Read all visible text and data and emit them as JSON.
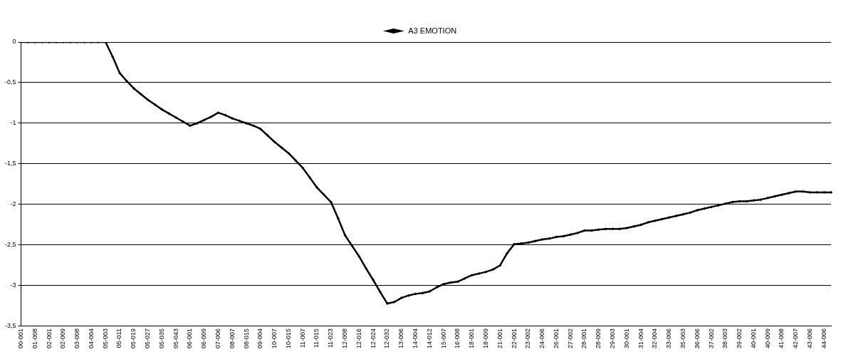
{
  "chart_data": {
    "type": "line",
    "categories": [
      "00-001",
      null,
      "01-008",
      null,
      "02-001",
      null,
      "02-009",
      null,
      "03-008",
      null,
      "04-004",
      null,
      "05-003",
      null,
      "05-011",
      null,
      "05-019",
      null,
      "05-027",
      null,
      "05-035",
      null,
      "05-043",
      null,
      "06-001",
      null,
      "06-009",
      null,
      "07-006",
      null,
      "08-007",
      null,
      "08-015",
      null,
      "09-004",
      null,
      "10-007",
      null,
      "10-015",
      null,
      "11-007",
      null,
      "11-015",
      null,
      "11-023",
      null,
      "12-008",
      null,
      "12-016",
      null,
      "12-024",
      null,
      "12-032",
      null,
      "13-006",
      null,
      "14-004",
      null,
      "14-012",
      null,
      "15-007",
      null,
      "16-008",
      null,
      "18-001",
      null,
      "18-009",
      null,
      "21-001",
      null,
      "22-001",
      null,
      "23-002",
      null,
      "24-006",
      null,
      "26-001",
      null,
      "27-002",
      null,
      "28-001",
      null,
      "28-009",
      null,
      "29-003",
      null,
      "30-001",
      null,
      "31-004",
      null,
      "32-004",
      null,
      "33-006",
      null,
      "35-003",
      null,
      "36-006",
      null,
      "37-002",
      null,
      "38-003",
      null,
      "39-002",
      null,
      "40-001",
      null,
      "40-009",
      null,
      "41-008",
      null,
      "42-007",
      null,
      "43-006",
      null,
      "44-006",
      null
    ],
    "series": [
      {
        "name": "A3 EMOTION",
        "color": "#000000",
        "values": [
          0,
          0,
          0,
          0,
          0,
          0,
          0,
          0,
          0,
          0,
          0,
          0,
          0,
          -0.18,
          -0.38,
          -0.48,
          -0.57,
          -0.64,
          -0.71,
          -0.77,
          -0.83,
          -0.88,
          -0.93,
          -0.98,
          -1.03,
          -1.0,
          -0.96,
          -0.92,
          -0.87,
          -0.9,
          -0.94,
          -0.97,
          -1.0,
          -1.03,
          -1.07,
          -1.15,
          -1.23,
          -1.3,
          -1.37,
          -1.46,
          -1.55,
          -1.67,
          -1.79,
          -1.88,
          -1.97,
          -2.17,
          -2.38,
          -2.51,
          -2.64,
          -2.79,
          -2.93,
          -3.08,
          -3.22,
          -3.2,
          -3.15,
          -3.12,
          -3.1,
          -3.09,
          -3.07,
          -3.02,
          -2.98,
          -2.96,
          -2.95,
          -2.91,
          -2.87,
          -2.85,
          -2.83,
          -2.8,
          -2.75,
          -2.6,
          -2.49,
          -2.48,
          -2.47,
          -2.45,
          -2.43,
          -2.42,
          -2.4,
          -2.39,
          -2.37,
          -2.35,
          -2.32,
          -2.32,
          -2.31,
          -2.3,
          -2.3,
          -2.3,
          -2.29,
          -2.27,
          -2.25,
          -2.22,
          -2.2,
          -2.18,
          -2.16,
          -2.14,
          -2.12,
          -2.1,
          -2.07,
          -2.05,
          -2.03,
          -2.01,
          -1.99,
          -1.97,
          -1.96,
          -1.96,
          -1.95,
          -1.94,
          -1.92,
          -1.9,
          -1.88,
          -1.86,
          -1.84,
          -1.84,
          -1.85,
          -1.85,
          -1.85,
          -1.85
        ]
      }
    ],
    "ylim": [
      -3.5,
      0
    ],
    "yticks": [
      {
        "value": 0,
        "label": "0"
      },
      {
        "value": -0.5,
        "label": "-0,5"
      },
      {
        "value": -1,
        "label": "-1"
      },
      {
        "value": -1.5,
        "label": "-1,5"
      },
      {
        "value": -2,
        "label": "-2"
      },
      {
        "value": -2.5,
        "label": "-2,5"
      },
      {
        "value": -3,
        "label": "-3"
      },
      {
        "value": -3.5,
        "label": "-3,5"
      }
    ],
    "grid": "y",
    "legend": "top",
    "marker": "diamond",
    "line_style": "solid"
  }
}
